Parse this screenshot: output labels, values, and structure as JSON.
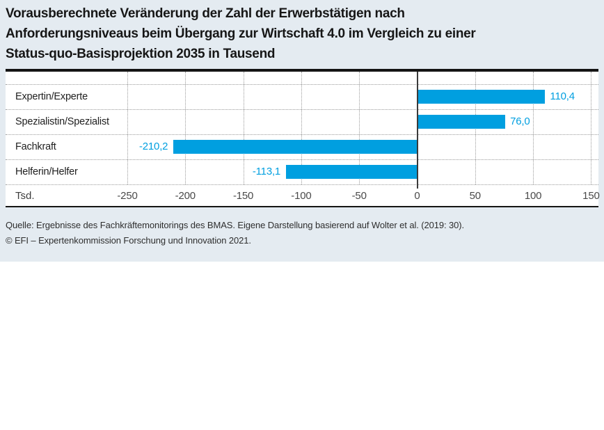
{
  "title_lines": [
    "Vorausberechnete Veränderung der Zahl der Erwerbstätigen nach",
    "Anforderungsniveaus beim Übergang zur Wirtschaft 4.0 im Vergleich zu einer",
    "Status-quo-Basisprojektion 2035 in Tausend"
  ],
  "source_lines": [
    "Quelle: Ergebnisse des Fachkräftemonitorings des BMAS. Eigene Darstellung basierend auf Wolter et al. (2019: 30).",
    "© EFI – Expertenkommission Forschung und Innovation 2021."
  ],
  "axis_unit_label": "Tsd.",
  "colors": {
    "panel_background": "#e4ebf1",
    "plot_background": "#ffffff",
    "bar": "#009fe0",
    "value_label": "#009fe0",
    "grid": "#9a9a9a",
    "frame": "#141414",
    "zero_line": "#3a3a3a",
    "title_text": "#161616",
    "axis_text": "#4a4a4a"
  },
  "chart_data": {
    "type": "bar",
    "orientation": "horizontal",
    "title": "Vorausberechnete Veränderung der Zahl der Erwerbstätigen nach Anforderungsniveaus beim Übergang zur Wirtschaft 4.0 im Vergleich zu einer Status-quo-Basisprojektion 2035 in Tausend",
    "unit": "Tsd.",
    "categories": [
      "Expertin/Experte",
      "Spezialistin/Spezialist",
      "Fachkraft",
      "Helferin/Helfer"
    ],
    "values": [
      110.4,
      76.0,
      -210.2,
      -113.1
    ],
    "value_labels": [
      "110,4",
      "76,0",
      "-210,2",
      "-113,1"
    ],
    "x_ticks": [
      -250,
      -200,
      -150,
      -100,
      -50,
      0,
      50,
      100,
      150
    ],
    "x_tick_labels": [
      "-250",
      "-200",
      "-150",
      "-100",
      "-50",
      "0",
      "50",
      "100",
      "150"
    ],
    "xlim": [
      -250,
      150
    ],
    "grid": "dotted",
    "legend": "none"
  }
}
